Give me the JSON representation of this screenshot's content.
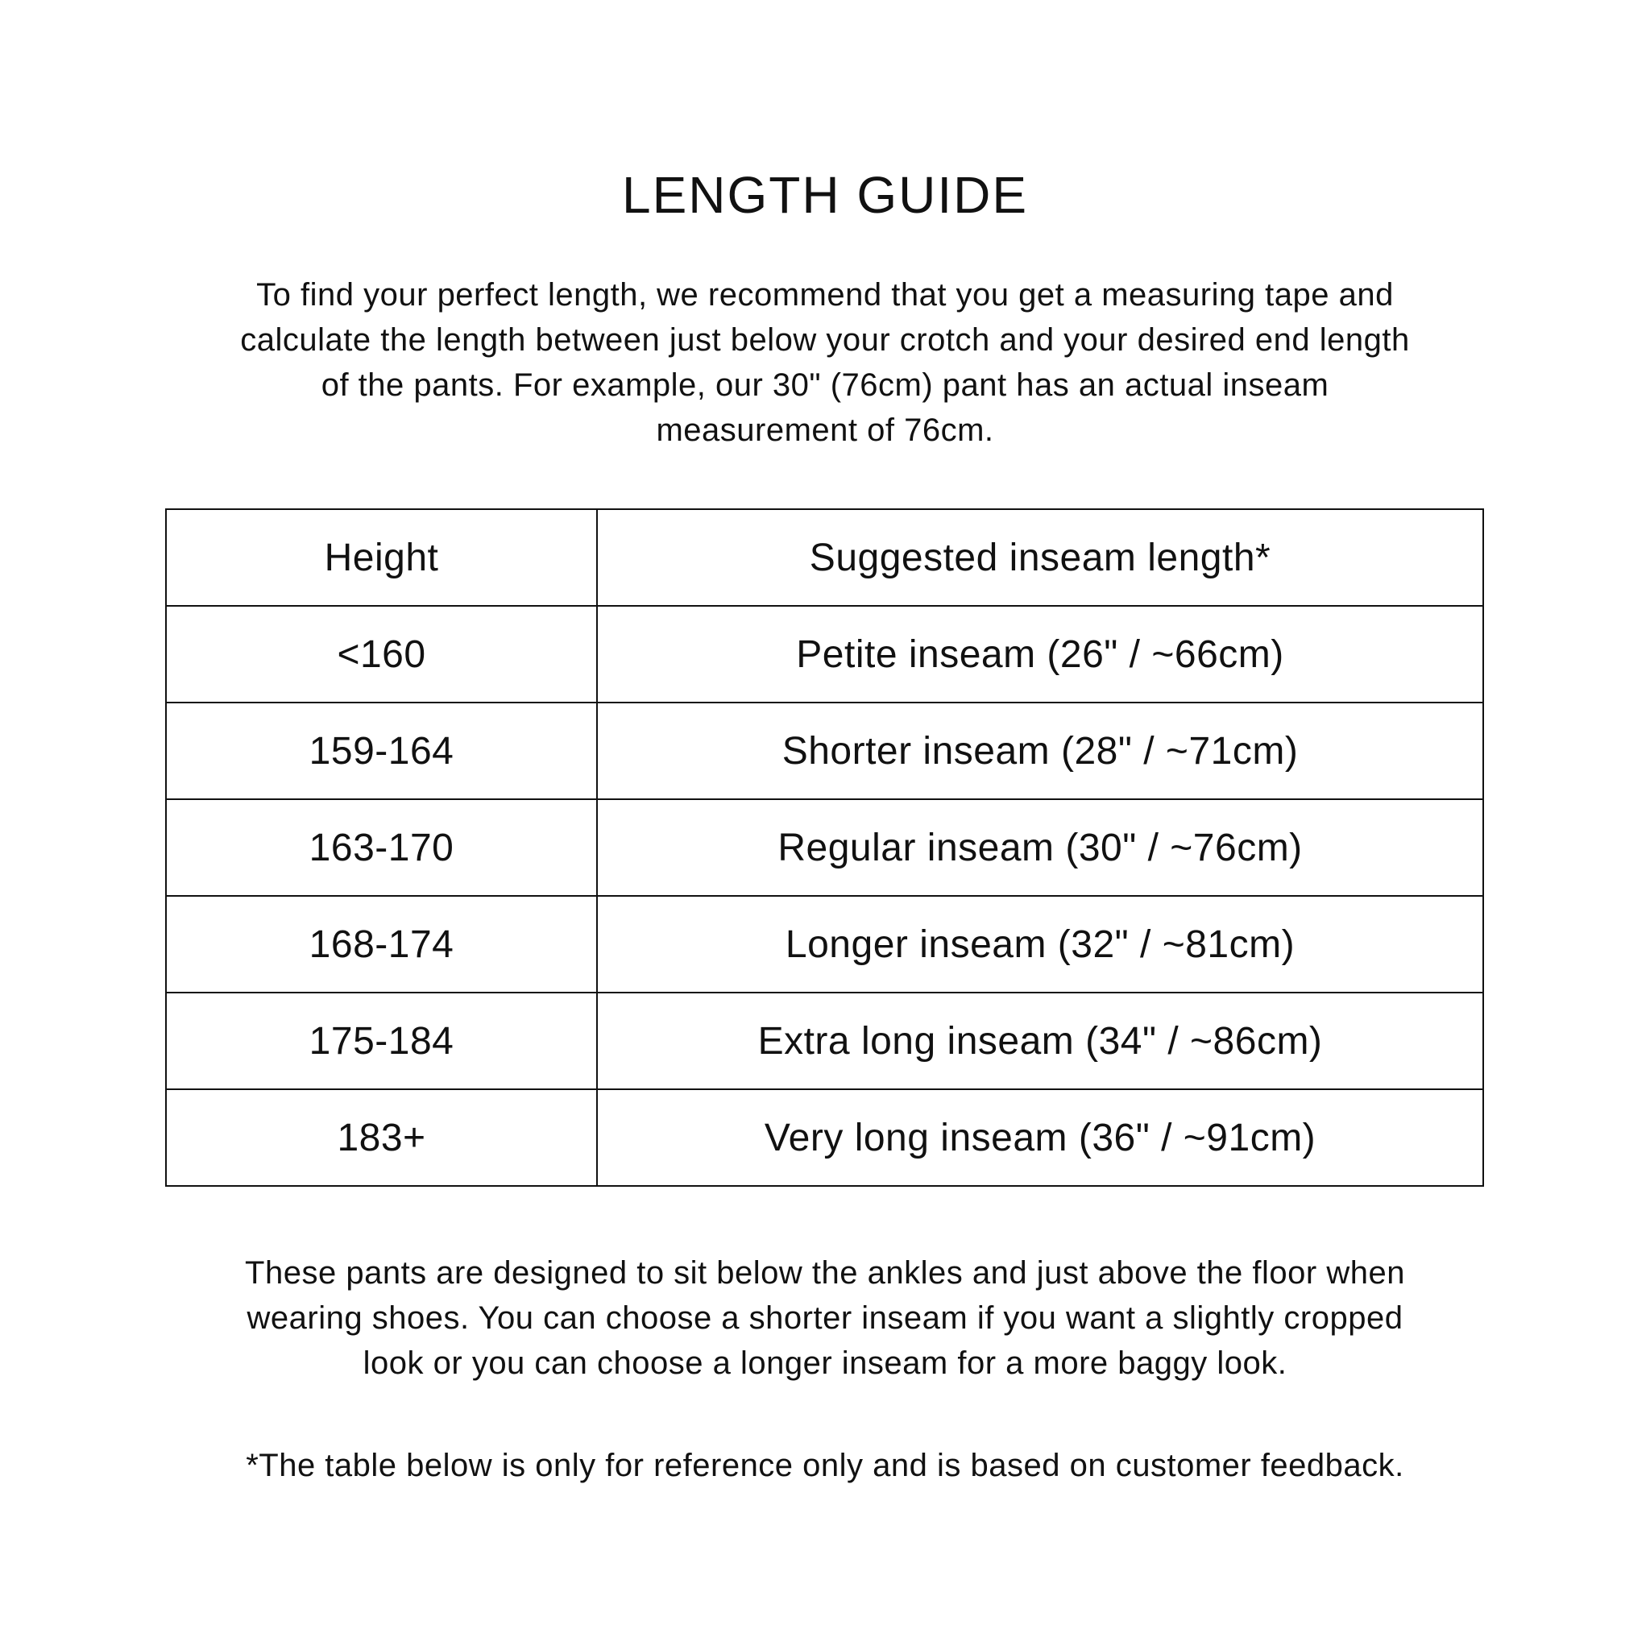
{
  "title": "LENGTH GUIDE",
  "intro_lines": [
    "To find your perfect length, we recommend that you get a measuring tape and",
    "calculate the length between just below your crotch and your desired end length",
    "of the pants. For example, our 30\" (76cm) pant has an actual inseam",
    "measurement of 76cm."
  ],
  "table": {
    "headers": [
      "Height",
      "Suggested inseam length*"
    ],
    "rows": [
      [
        "<160",
        "Petite inseam (26\" / ~66cm)"
      ],
      [
        "159-164",
        "Shorter inseam (28\" / ~71cm)"
      ],
      [
        "163-170",
        "Regular inseam (30\" / ~76cm)"
      ],
      [
        "168-174",
        "Longer inseam (32\" / ~81cm)"
      ],
      [
        "175-184",
        "Extra long inseam (34\" / ~86cm)"
      ],
      [
        "183+",
        "Very long inseam (36\" / ~91cm)"
      ]
    ]
  },
  "outro_lines": [
    "These pants are designed to sit below the ankles and just above the floor when",
    "wearing shoes. You can choose a shorter inseam if you want a slightly cropped",
    "look or you can choose a longer inseam for a more baggy look."
  ],
  "footnote": "*The table below is only for reference only and is based on customer feedback."
}
